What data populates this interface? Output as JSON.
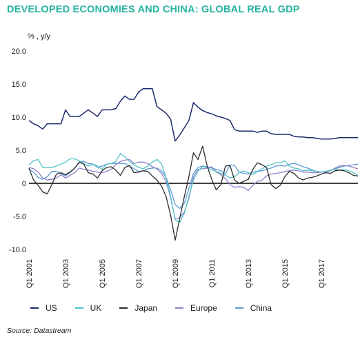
{
  "chart_data": {
    "type": "line",
    "title": "DEVELOPED ECONOMIES AND CHINA: GLOBAL REAL GDP",
    "ylabel": "% , y/y",
    "xlabel": "",
    "ylim": [
      -10,
      20
    ],
    "y_ticks": [
      "20.0",
      "15.0",
      "10.0",
      "5.0",
      "0",
      "-5.0",
      "-10.0"
    ],
    "x_ticks": [
      "Q1 2001",
      "Q1 2003",
      "Q1 2005",
      "Q1 2007",
      "Q1 2009",
      "Q1 2011",
      "Q1 2013",
      "Q1 2015",
      "Q1 2017"
    ],
    "x_start": "Q1 2001",
    "grid": false,
    "legend_position": "bottom",
    "source": "Source: Datastream",
    "series": [
      {
        "name": "US",
        "color": "#1b2a6b",
        "values": [
          9.5,
          9.0,
          8.7,
          8.2,
          9.0,
          9.0,
          9.0,
          9.0,
          11.1,
          10.1,
          10.1,
          10.1,
          10.6,
          11.1,
          10.6,
          10.1,
          11.1,
          11.1,
          11.1,
          11.3,
          12.4,
          13.2,
          12.7,
          12.7,
          13.8,
          14.3,
          14.3,
          14.3,
          11.6,
          11.1,
          10.6,
          9.7,
          6.4,
          7.3,
          8.4,
          9.5,
          12.2,
          11.5,
          11.0,
          10.7,
          10.5,
          10.2,
          10.0,
          9.8,
          9.5,
          8.1,
          7.9,
          7.9,
          7.9,
          7.9,
          7.7,
          7.9,
          7.9,
          7.5,
          7.4,
          7.4,
          7.4,
          7.4,
          7.1,
          7.0,
          7.0,
          6.9,
          6.9,
          6.8,
          6.7,
          6.7,
          6.7,
          6.8,
          6.9,
          6.9,
          6.9,
          6.9,
          6.9
        ]
      },
      {
        "name": "UK",
        "color": "#4fc2c7",
        "values": [
          2.8,
          3.4,
          3.6,
          2.4,
          2.4,
          2.4,
          2.6,
          2.9,
          3.2,
          3.7,
          3.7,
          3.4,
          3.0,
          2.6,
          2.9,
          2.6,
          2.1,
          2.9,
          3.0,
          3.3,
          4.5,
          4.0,
          3.3,
          2.8,
          2.4,
          2.2,
          2.6,
          3.2,
          3.6,
          3.0,
          0.8,
          -2.0,
          -5.5,
          -5.9,
          -4.5,
          -2.0,
          0.5,
          1.9,
          2.5,
          2.4,
          2.0,
          1.8,
          1.5,
          1.2,
          0.8,
          1.0,
          1.6,
          1.9,
          1.6,
          1.3,
          1.8,
          2.2,
          2.6,
          2.8,
          3.1,
          3.1,
          3.4,
          2.6,
          2.3,
          2.2,
          1.9,
          2.0,
          1.9,
          1.8,
          1.7,
          1.8,
          2.0,
          2.1,
          2.0,
          2.1,
          1.9,
          1.6,
          1.2
        ]
      },
      {
        "name": "Japan",
        "color": "#2b2b2b",
        "values": [
          2.3,
          0.5,
          -0.3,
          -1.3,
          -1.6,
          -0.2,
          1.4,
          1.6,
          1.3,
          1.7,
          2.3,
          3.2,
          2.9,
          1.6,
          1.4,
          0.8,
          1.9,
          2.4,
          2.5,
          2.0,
          1.2,
          2.4,
          2.7,
          1.6,
          1.7,
          1.9,
          1.8,
          1.1,
          0.5,
          -0.4,
          -2.0,
          -4.8,
          -8.6,
          -5.3,
          -2.0,
          1.0,
          4.6,
          3.6,
          5.6,
          2.6,
          0.6,
          -1.0,
          -0.2,
          2.6,
          2.7,
          0.5,
          0.0,
          0.3,
          0.6,
          2.1,
          3.1,
          2.8,
          2.4,
          -0.2,
          -0.8,
          -0.3,
          1.0,
          1.8,
          1.5,
          0.8,
          0.5,
          0.8,
          0.9,
          1.1,
          1.4,
          1.6,
          1.5,
          1.9,
          2.0,
          1.9,
          1.6,
          1.2,
          1.1
        ]
      },
      {
        "name": "Europe",
        "color": "#8b80c8",
        "values": [
          2.4,
          2.2,
          1.7,
          0.8,
          0.5,
          0.6,
          0.8,
          1.3,
          0.8,
          1.2,
          1.6,
          2.3,
          2.1,
          2.0,
          1.8,
          1.7,
          1.6,
          1.8,
          2.1,
          2.8,
          3.3,
          3.5,
          3.6,
          3.0,
          3.2,
          3.2,
          3.0,
          2.5,
          2.2,
          1.5,
          0.3,
          -2.2,
          -5.4,
          -5.2,
          -4.3,
          -2.3,
          1.0,
          2.1,
          2.2,
          2.3,
          2.5,
          1.7,
          1.3,
          0.7,
          -0.2,
          -0.6,
          -0.5,
          -0.6,
          -1.1,
          -0.3,
          0.3,
          0.5,
          1.1,
          1.4,
          1.5,
          1.6,
          1.8,
          1.9,
          2.0,
          1.9,
          1.7,
          1.7,
          1.6,
          1.6,
          1.7,
          1.7,
          1.9,
          2.3,
          2.6,
          2.7,
          2.6,
          2.4,
          2.2
        ]
      },
      {
        "name": "China",
        "color": "#5b9bd5",
        "values": [
          2.1,
          1.7,
          0.9,
          0.6,
          1.0,
          1.8,
          1.8,
          1.5,
          1.1,
          1.6,
          2.3,
          3.2,
          3.3,
          3.0,
          2.9,
          2.4,
          2.6,
          2.9,
          3.0,
          3.0,
          3.0,
          3.0,
          2.6,
          2.2,
          1.8,
          1.9,
          2.2,
          2.3,
          2.3,
          1.9,
          0.9,
          -1.0,
          -3.2,
          -3.8,
          -3.0,
          -0.8,
          1.5,
          2.4,
          2.6,
          2.5,
          2.3,
          2.1,
          1.9,
          1.4,
          2.8,
          2.7,
          1.7,
          1.5,
          1.4,
          1.7,
          1.8,
          1.9,
          2.1,
          2.3,
          2.6,
          2.7,
          2.6,
          2.9,
          3.0,
          2.8,
          2.5,
          2.3,
          2.0,
          1.8,
          1.7,
          1.8,
          2.0,
          2.2,
          2.4,
          2.6,
          2.7,
          2.8,
          2.9
        ]
      }
    ]
  }
}
